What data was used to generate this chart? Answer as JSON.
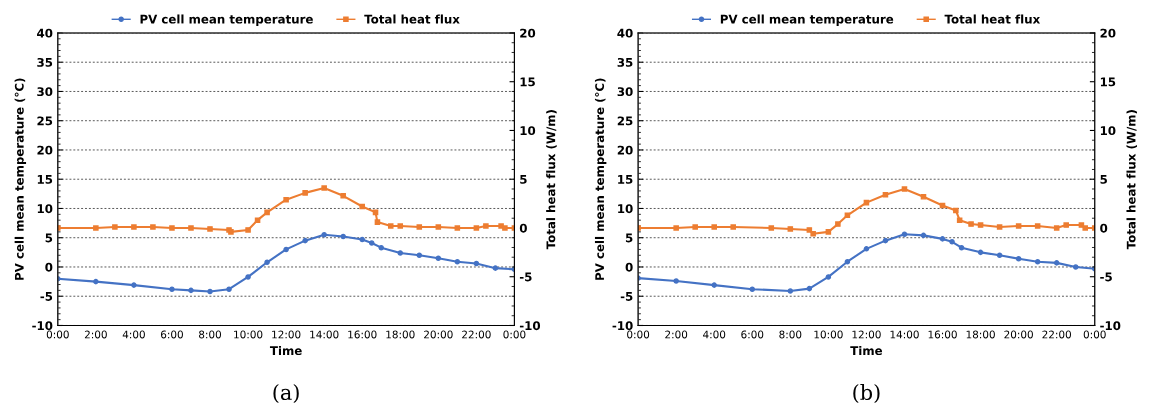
{
  "chart_data": [
    {
      "type": "line",
      "xlabel": "Time",
      "ylabel": "PV cell mean temperature (°C)",
      "y2label": "Total heat flux (W/m)",
      "legend": "top",
      "grid": "y",
      "annotations": [
        "(a)"
      ],
      "xlim": [
        0,
        24
      ],
      "xticks": [
        {
          "value": 0,
          "label": "0:00"
        },
        {
          "value": 2,
          "label": "2:00"
        },
        {
          "value": 4,
          "label": "4:00"
        },
        {
          "value": 6,
          "label": "6:00"
        },
        {
          "value": 8,
          "label": "8:00"
        },
        {
          "value": 10,
          "label": "10:00"
        },
        {
          "value": 12,
          "label": "12:00"
        },
        {
          "value": 14,
          "label": "14:00"
        },
        {
          "value": 16,
          "label": "16:00"
        },
        {
          "value": 18,
          "label": "18:00"
        },
        {
          "value": 20,
          "label": "20:00"
        },
        {
          "value": 22,
          "label": "22:00"
        },
        {
          "value": 24,
          "label": "0:00"
        }
      ],
      "ylim": [
        -10,
        40
      ],
      "yticks": [
        -10,
        -5,
        0,
        5,
        10,
        15,
        20,
        25,
        30,
        35,
        40
      ],
      "y2lim": [
        -10,
        20
      ],
      "y2ticks": [
        -10,
        -5,
        0,
        5,
        10,
        15,
        20
      ],
      "series": [
        {
          "name": "PV cell mean temperature",
          "color": "#4472c4",
          "marker": "circle",
          "x": [
            0,
            2,
            4,
            6,
            7,
            8,
            9,
            10,
            11,
            12,
            13,
            14,
            15,
            16,
            16.5,
            17,
            18,
            19,
            20,
            21,
            22,
            23,
            24
          ],
          "values": [
            -2.0,
            -2.5,
            -3.1,
            -3.8,
            -4.0,
            -4.2,
            -3.8,
            -1.7,
            0.8,
            3.0,
            4.5,
            5.5,
            5.2,
            4.7,
            4.1,
            3.3,
            2.4,
            2.0,
            1.5,
            0.9,
            0.6,
            -0.2,
            -0.4
          ]
        },
        {
          "name": "Total heat flux",
          "color": "#ed7d31",
          "marker": "square",
          "axis": "y2",
          "x": [
            0,
            2,
            3,
            4,
            5,
            6,
            7,
            8,
            9,
            9.1,
            10,
            10.5,
            11,
            12,
            13,
            14,
            15,
            16,
            16.7,
            16.8,
            17.5,
            18,
            19,
            20,
            21,
            22,
            22.5,
            23.3,
            23.5,
            24
          ],
          "values": [
            0.0,
            0.0,
            0.1,
            0.1,
            0.1,
            0.0,
            0.0,
            -0.1,
            -0.2,
            -0.4,
            -0.2,
            0.8,
            1.6,
            2.9,
            3.6,
            4.1,
            3.3,
            2.2,
            1.6,
            0.6,
            0.2,
            0.2,
            0.1,
            0.1,
            0.0,
            0.0,
            0.2,
            0.2,
            0.0,
            0.0
          ]
        }
      ]
    },
    {
      "type": "line",
      "xlabel": "Time",
      "ylabel": "PV cell mean temperature (°C)",
      "y2label": "Total heat flux (W/m)",
      "legend": "top",
      "grid": "y",
      "annotations": [
        "(b)"
      ],
      "xlim": [
        0,
        24
      ],
      "xticks": [
        {
          "value": 0,
          "label": "0:00"
        },
        {
          "value": 2,
          "label": "2:00"
        },
        {
          "value": 4,
          "label": "4:00"
        },
        {
          "value": 6,
          "label": "6:00"
        },
        {
          "value": 8,
          "label": "8:00"
        },
        {
          "value": 10,
          "label": "10:00"
        },
        {
          "value": 12,
          "label": "12:00"
        },
        {
          "value": 14,
          "label": "14:00"
        },
        {
          "value": 16,
          "label": "16:00"
        },
        {
          "value": 18,
          "label": "18:00"
        },
        {
          "value": 20,
          "label": "20:00"
        },
        {
          "value": 22,
          "label": "22:00"
        },
        {
          "value": 24,
          "label": "0:00"
        }
      ],
      "ylim": [
        -10,
        40
      ],
      "yticks": [
        -10,
        -5,
        0,
        5,
        10,
        15,
        20,
        25,
        30,
        35,
        40
      ],
      "y2lim": [
        -10,
        20
      ],
      "y2ticks": [
        -10,
        -5,
        0,
        5,
        10,
        15,
        20
      ],
      "series": [
        {
          "name": "PV cell mean temperature",
          "color": "#4472c4",
          "marker": "circle",
          "x": [
            0,
            2,
            4,
            6,
            8,
            9,
            10,
            11,
            12,
            13,
            14,
            15,
            16,
            16.5,
            17,
            18,
            19,
            20,
            21,
            22,
            23,
            24
          ],
          "values": [
            -1.9,
            -2.4,
            -3.1,
            -3.8,
            -4.1,
            -3.7,
            -1.7,
            0.9,
            3.1,
            4.5,
            5.6,
            5.4,
            4.8,
            4.3,
            3.3,
            2.5,
            2.0,
            1.4,
            0.9,
            0.7,
            0.0,
            -0.3
          ]
        },
        {
          "name": "Total heat flux",
          "color": "#ed7d31",
          "marker": "square",
          "axis": "y2",
          "x": [
            0,
            2,
            3,
            4,
            5,
            7,
            8,
            9,
            9.2,
            10,
            10.5,
            11,
            12,
            13,
            14,
            15,
            16,
            16.7,
            16.9,
            17.5,
            18,
            19,
            20,
            21,
            22,
            22.5,
            23.3,
            23.5,
            24
          ],
          "values": [
            0.0,
            0.0,
            0.1,
            0.1,
            0.1,
            0.0,
            -0.1,
            -0.2,
            -0.6,
            -0.4,
            0.4,
            1.3,
            2.6,
            3.4,
            4.0,
            3.2,
            2.3,
            1.8,
            0.8,
            0.4,
            0.3,
            0.1,
            0.2,
            0.2,
            0.0,
            0.3,
            0.3,
            0.0,
            0.0
          ]
        }
      ]
    }
  ]
}
